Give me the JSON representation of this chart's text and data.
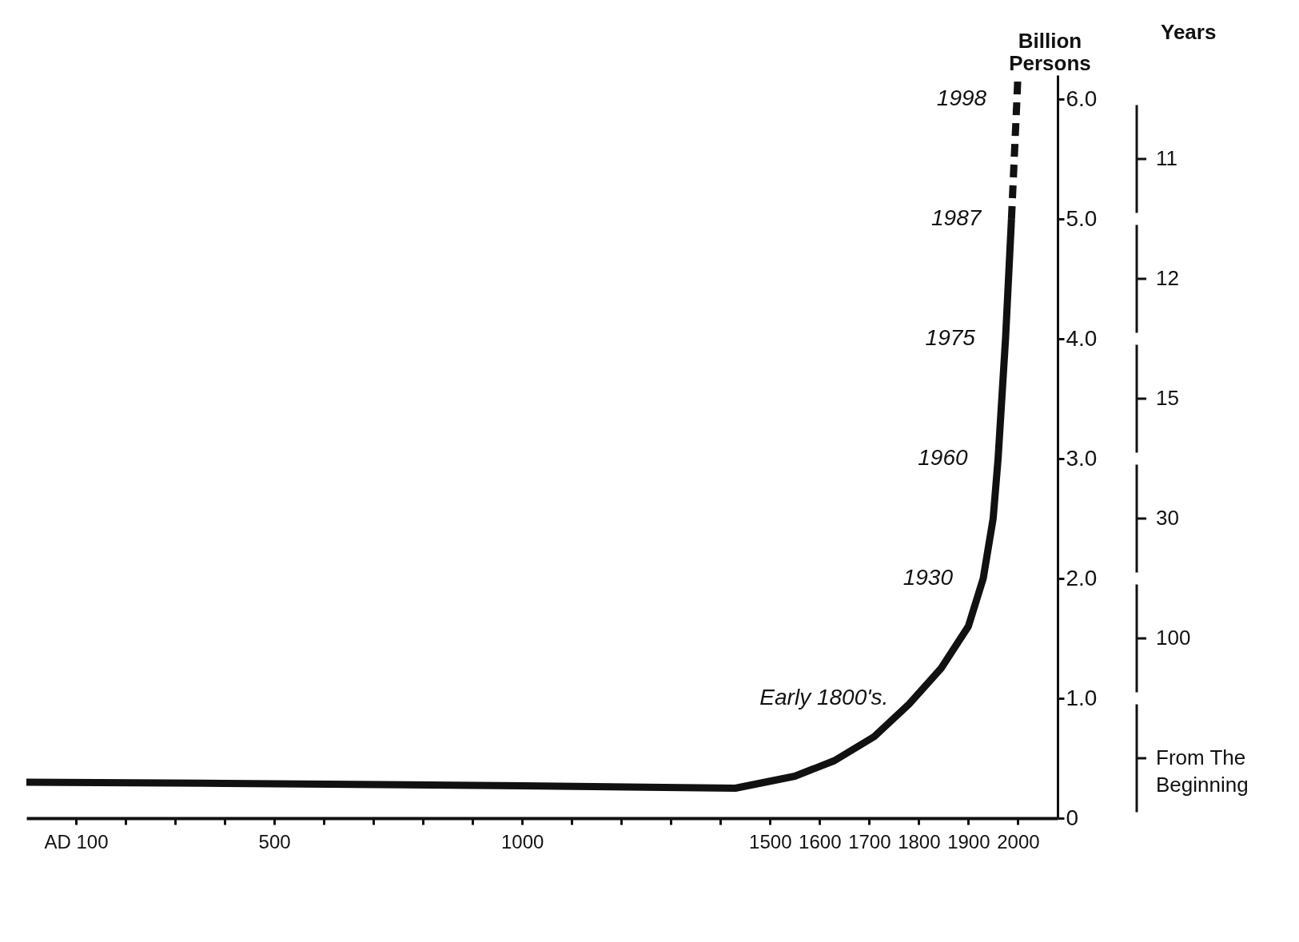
{
  "chart_data": {
    "type": "line",
    "ylabel": "Billion Persons",
    "xlim": [
      0,
      2080
    ],
    "ylim": [
      0,
      6.2
    ],
    "xticks": [
      {
        "value": 100,
        "label": "AD 100"
      },
      {
        "value": 200,
        "label": null
      },
      {
        "value": 300,
        "label": null
      },
      {
        "value": 400,
        "label": null
      },
      500,
      {
        "value": 600,
        "label": null
      },
      {
        "value": 700,
        "label": null
      },
      {
        "value": 800,
        "label": null
      },
      {
        "value": 900,
        "label": null
      },
      1000,
      {
        "value": 1100,
        "label": null
      },
      {
        "value": 1200,
        "label": null
      },
      {
        "value": 1300,
        "label": null
      },
      {
        "value": 1400,
        "label": null
      },
      1500,
      1600,
      1700,
      1800,
      1900,
      2000
    ],
    "yticks": [
      0,
      {
        "value": 1,
        "label": "1.0"
      },
      {
        "value": 2,
        "label": "2.0"
      },
      {
        "value": 3,
        "label": "3.0"
      },
      {
        "value": 4,
        "label": "4.0"
      },
      {
        "value": 5,
        "label": "5.0"
      },
      {
        "value": 6,
        "label": "6.0"
      }
    ],
    "series": [
      {
        "color": "#111111",
        "x": [
          0,
          400,
          1000,
          1430,
          1550,
          1630,
          1710,
          1780,
          1845,
          1900,
          1930,
          1950,
          1960,
          1975,
          1987
        ],
        "values": [
          0.3,
          0.29,
          0.27,
          0.25,
          0.35,
          0.48,
          0.68,
          0.95,
          1.25,
          1.6,
          2.0,
          2.5,
          3.0,
          4.0,
          5.0
        ]
      },
      {
        "color": "#111111",
        "line_style": "dashed",
        "x": [
          1987,
          1998,
          2000
        ],
        "values": [
          5.0,
          6.0,
          6.2
        ]
      }
    ],
    "grid": false,
    "annotations": [
      {
        "text": "Early 1800's.",
        "x": 1800,
        "y": 1.0
      },
      {
        "text": "1930",
        "x": 1930,
        "y": 2.0
      },
      {
        "text": "1960",
        "x": 1960,
        "y": 3.0
      },
      {
        "text": "1975",
        "x": 1975,
        "y": 4.0
      },
      {
        "text": "1987",
        "x": 1987,
        "y": 5.0
      },
      {
        "text": "1998",
        "x": 1998,
        "y": 6.0
      },
      "Years",
      "11",
      "12",
      "15",
      "30",
      "100",
      "From The Beginning"
    ]
  }
}
